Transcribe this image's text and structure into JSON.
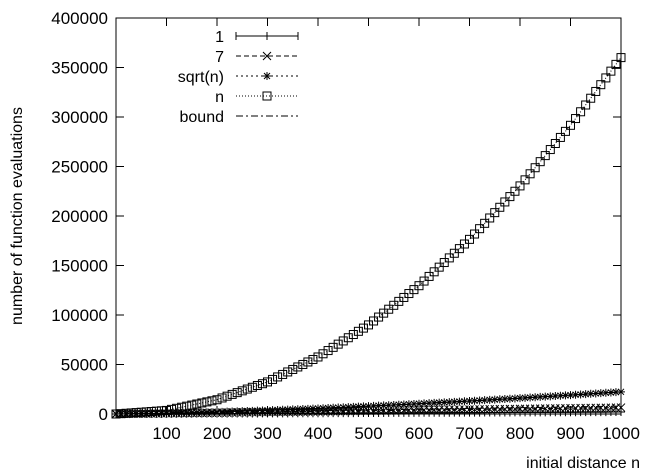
{
  "chart_data": {
    "type": "line",
    "title": "",
    "xlabel": "initial distance n",
    "ylabel": "number of function evaluations",
    "xlim": [
      0,
      1000
    ],
    "ylim": [
      0,
      400000
    ],
    "xticks": [
      100,
      200,
      300,
      400,
      500,
      600,
      700,
      800,
      900,
      1000
    ],
    "yticks": [
      0,
      50000,
      100000,
      150000,
      200000,
      250000,
      300000,
      350000,
      400000
    ],
    "grid": false,
    "legend_position": "top-left",
    "series": [
      {
        "name": "1",
        "marker": "plus",
        "dash": "solid",
        "x": [
          0,
          100,
          200,
          300,
          400,
          500,
          600,
          700,
          800,
          900,
          1000
        ],
        "y": [
          0,
          200,
          400,
          600,
          800,
          1000,
          1200,
          1400,
          1600,
          1800,
          2000
        ]
      },
      {
        "name": "7",
        "marker": "cross",
        "dash": "dashed",
        "x": [
          0,
          100,
          200,
          300,
          400,
          500,
          600,
          700,
          800,
          900,
          1000
        ],
        "y": [
          0,
          650,
          1300,
          1950,
          2600,
          3250,
          3900,
          4550,
          5200,
          5850,
          6500
        ]
      },
      {
        "name": "sqrt(n)",
        "marker": "star",
        "dash": "dotted",
        "x": [
          0,
          100,
          200,
          300,
          400,
          500,
          600,
          700,
          800,
          900,
          1000
        ],
        "y": [
          0,
          700,
          2000,
          3700,
          5600,
          7900,
          10400,
          13100,
          16000,
          19100,
          22400
        ]
      },
      {
        "name": "n",
        "marker": "box",
        "dash": "fine-dotted",
        "x": [
          0,
          100,
          200,
          300,
          400,
          500,
          600,
          700,
          800,
          900,
          1000
        ],
        "y": [
          0,
          3600,
          14400,
          32400,
          57600,
          90000,
          129600,
          176400,
          230400,
          291600,
          360000
        ]
      },
      {
        "name": "bound",
        "marker": "none",
        "dash": "dash-dot",
        "x": [
          0,
          100,
          200,
          300,
          400,
          500,
          600,
          700,
          800,
          900,
          1000
        ],
        "y": [
          0,
          800,
          1600,
          2400,
          3200,
          4000,
          4800,
          5600,
          6400,
          7200,
          8000
        ]
      }
    ]
  }
}
